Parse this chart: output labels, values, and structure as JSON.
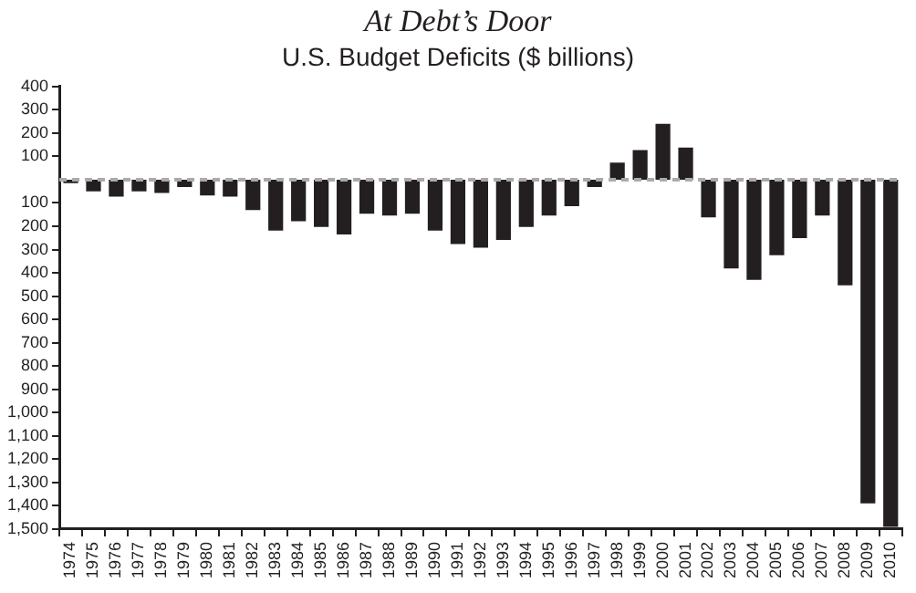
{
  "chart_data": {
    "type": "bar",
    "title": "At Debt’s Door",
    "subtitle": "U.S. Budget Deficits ($ billions)",
    "categories": [
      "1974",
      "1975",
      "1976",
      "1977",
      "1978",
      "1979",
      "1980",
      "1981",
      "1982",
      "1983",
      "1984",
      "1985",
      "1986",
      "1987",
      "1988",
      "1989",
      "1990",
      "1991",
      "1992",
      "1993",
      "1994",
      "1995",
      "1996",
      "1997",
      "1998",
      "1999",
      "2000",
      "2001",
      "2002",
      "2003",
      "2004",
      "2005",
      "2006",
      "2007",
      "2008",
      "2009",
      "2010"
    ],
    "values": [
      -15,
      -50,
      -73,
      -50,
      -57,
      -32,
      -68,
      -73,
      -130,
      -219,
      -178,
      -203,
      -235,
      -146,
      -154,
      -146,
      -219,
      -276,
      -292,
      -259,
      -203,
      -154,
      -114,
      -32,
      73,
      127,
      240,
      138,
      -162,
      -381,
      -430,
      -324,
      -251,
      -154,
      -454,
      -1390,
      -1490
    ],
    "color": "#231f20",
    "ylim": [
      -1500,
      400
    ],
    "yticks": [
      400,
      300,
      200,
      100,
      {
        "value": -100,
        "label": "100"
      },
      {
        "value": -200,
        "label": "200"
      },
      {
        "value": -300,
        "label": "300"
      },
      {
        "value": -400,
        "label": "400"
      },
      {
        "value": -500,
        "label": "500"
      },
      {
        "value": -600,
        "label": "600"
      },
      {
        "value": -700,
        "label": "700"
      },
      {
        "value": -800,
        "label": "800"
      },
      {
        "value": -900,
        "label": "900"
      },
      {
        "value": -1000,
        "label": "1,000"
      },
      {
        "value": -1100,
        "label": "1,100"
      },
      {
        "value": -1200,
        "label": "1,200"
      },
      {
        "value": -1300,
        "label": "1,300"
      },
      {
        "value": -1400,
        "label": "1,400"
      },
      {
        "value": -1500,
        "label": "1,500"
      }
    ],
    "ref_lines": [
      {
        "axis": "y",
        "value": 0,
        "color": "#aaaaaa",
        "line_style": "dashed"
      }
    ],
    "grid": false,
    "legend": false
  }
}
